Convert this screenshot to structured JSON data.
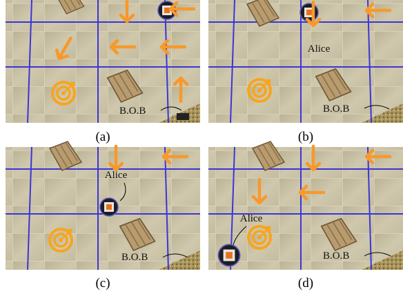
{
  "panels": [
    {
      "caption": "(a)",
      "bob": "B.O.B"
    },
    {
      "caption": "(b)",
      "alice": "Alice",
      "bob": "B.O.B"
    },
    {
      "caption": "(c)",
      "alice": "Alice",
      "bob": "B.O.B"
    },
    {
      "caption": "(d)",
      "alice": "Alice",
      "bob": "B.O.B"
    }
  ]
}
